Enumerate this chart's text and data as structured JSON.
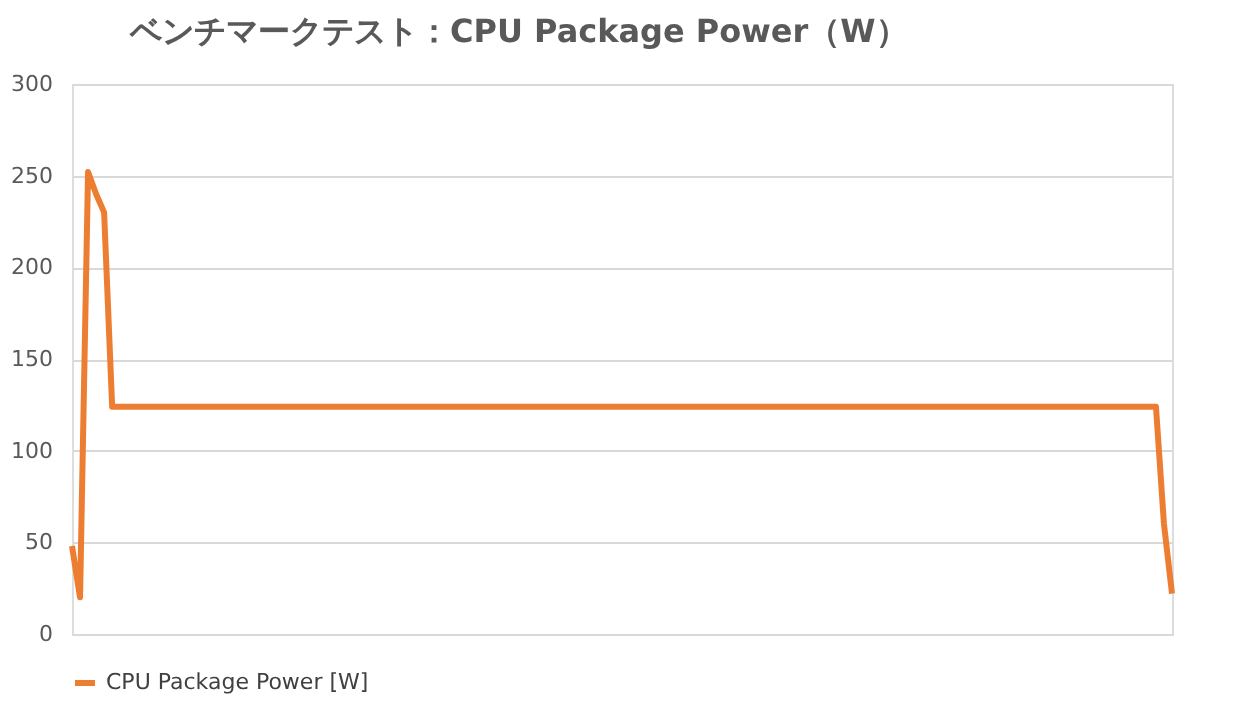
{
  "chart_data": {
    "type": "line",
    "title": "ベンチマークテスト：CPU Package Power（W）",
    "categories": [
      null,
      null,
      null,
      null,
      null,
      null,
      null,
      null,
      null,
      null,
      null,
      null,
      null,
      null,
      null,
      null,
      null,
      null,
      null,
      null,
      null,
      null,
      null,
      null,
      null,
      null,
      null,
      null,
      null,
      null,
      null,
      null,
      null,
      null,
      null,
      null,
      null,
      null,
      null,
      null,
      null,
      null,
      null,
      null,
      null,
      null,
      null,
      null,
      null,
      null,
      null,
      null,
      null,
      null,
      null,
      null,
      null,
      null,
      null,
      null,
      null,
      null,
      null,
      null,
      null,
      null,
      null,
      null,
      null,
      null,
      null,
      null,
      null,
      null,
      null,
      null,
      null,
      null,
      null,
      null,
      null,
      null,
      null,
      null,
      null,
      null,
      null,
      null,
      null,
      null,
      null,
      null,
      null,
      null,
      null,
      null,
      null,
      null,
      null,
      null,
      null,
      null,
      null,
      null,
      null,
      null,
      null,
      null,
      null,
      null,
      null,
      null,
      null,
      null,
      null,
      null,
      null,
      null,
      null,
      null,
      null,
      null,
      null,
      null,
      null,
      null,
      null,
      null,
      null,
      null,
      null,
      null,
      null,
      null,
      null,
      null,
      null,
      null
    ],
    "series": [
      {
        "name": "CPU Package Power [W]",
        "color": "#ed7d31",
        "values": [
          48,
          20,
          252,
          240,
          230,
          124,
          124,
          124,
          124,
          124,
          124,
          124,
          124,
          124,
          124,
          124,
          124,
          124,
          124,
          124,
          124,
          124,
          124,
          124,
          124,
          124,
          124,
          124,
          124,
          124,
          124,
          124,
          124,
          124,
          124,
          124,
          124,
          124,
          124,
          124,
          124,
          124,
          124,
          124,
          124,
          124,
          124,
          124,
          124,
          124,
          124,
          124,
          124,
          124,
          124,
          124,
          124,
          124,
          124,
          124,
          124,
          124,
          124,
          124,
          124,
          124,
          124,
          124,
          124,
          124,
          124,
          124,
          124,
          124,
          124,
          124,
          124,
          124,
          124,
          124,
          124,
          124,
          124,
          124,
          124,
          124,
          124,
          124,
          124,
          124,
          124,
          124,
          124,
          124,
          124,
          124,
          124,
          124,
          124,
          124,
          124,
          124,
          124,
          124,
          124,
          124,
          124,
          124,
          124,
          124,
          124,
          124,
          124,
          124,
          124,
          124,
          124,
          124,
          124,
          124,
          124,
          124,
          124,
          124,
          124,
          124,
          124,
          124,
          124,
          124,
          124,
          124,
          124,
          124,
          124,
          124,
          60,
          22
        ]
      }
    ],
    "ylim": [
      0,
      300
    ],
    "yticks": [
      0,
      50,
      100,
      150,
      200,
      250,
      300
    ],
    "grid": "y",
    "legend": "bottom",
    "tick_labels": "y",
    "line_style": "solid",
    "marker": "none"
  }
}
